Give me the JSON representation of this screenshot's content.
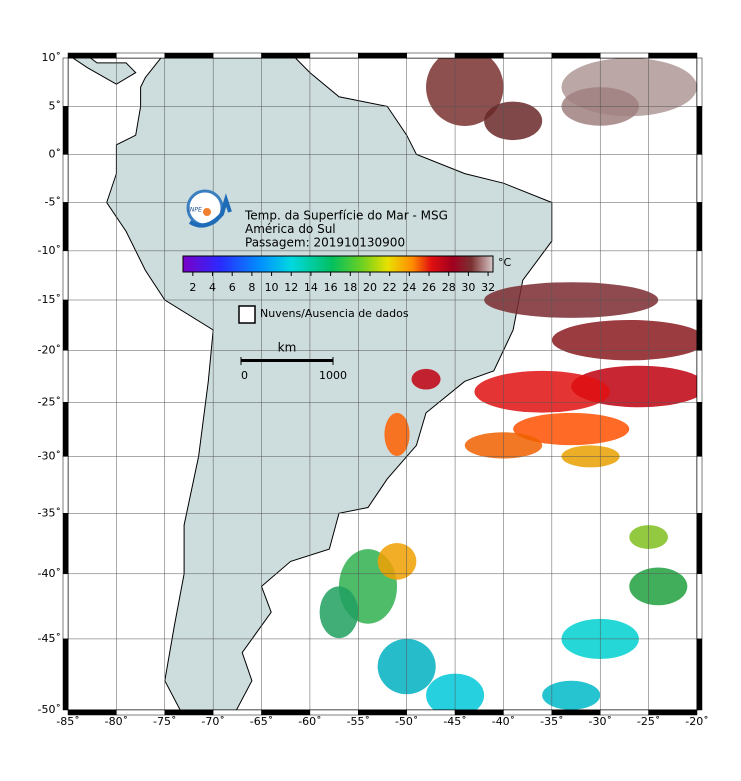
{
  "map": {
    "lon_lim": [
      -85,
      -20
    ],
    "lat_lim": [
      10,
      -50
    ],
    "lon_ticks": [
      {
        "value": -85,
        "label": "-85˚"
      },
      {
        "value": -80,
        "label": "-80˚"
      },
      {
        "value": -75,
        "label": "-75˚"
      },
      {
        "value": -70,
        "label": "-70˚"
      },
      {
        "value": -65,
        "label": "-65˚"
      },
      {
        "value": -60,
        "label": "-60˚"
      },
      {
        "value": -55,
        "label": "-55˚"
      },
      {
        "value": -50,
        "label": "-50˚"
      },
      {
        "value": -45,
        "label": "-45˚"
      },
      {
        "value": -40,
        "label": "-40˚"
      },
      {
        "value": -35,
        "label": "-35˚"
      },
      {
        "value": -30,
        "label": "-30˚"
      },
      {
        "value": -25,
        "label": "-25˚"
      },
      {
        "value": -20,
        "label": "-20˚"
      }
    ],
    "lat_ticks": [
      {
        "value": 10,
        "label": "10˚"
      },
      {
        "value": 5,
        "label": "5˚"
      },
      {
        "value": 0,
        "label": "0˚"
      },
      {
        "value": -5,
        "label": "-5˚"
      },
      {
        "value": -10,
        "label": "-10˚"
      },
      {
        "value": -15,
        "label": "-15˚"
      },
      {
        "value": -20,
        "label": "-20˚"
      },
      {
        "value": -25,
        "label": "-25˚"
      },
      {
        "value": -30,
        "label": "-30˚"
      },
      {
        "value": -35,
        "label": "-35˚"
      },
      {
        "value": -40,
        "label": "-40˚"
      },
      {
        "value": -45,
        "label": "-45˚"
      },
      {
        "value": -50,
        "label": "-50˚"
      }
    ],
    "title_lines": [
      "Temp. da Superfície do Mar - MSG",
      "América do Sul",
      "Passagem: 201910130900"
    ],
    "logo_text": "INPE",
    "colorbar": {
      "lim": [
        1,
        32.5
      ],
      "ticks": [
        2,
        4,
        6,
        8,
        10,
        12,
        14,
        16,
        18,
        20,
        22,
        24,
        26,
        28,
        30,
        32
      ],
      "unit": "°C"
    },
    "legend": "Nuvens/Ausencia de dados",
    "scale_bar": {
      "unit": "km",
      "ticks": [
        0,
        1000
      ]
    }
  }
}
